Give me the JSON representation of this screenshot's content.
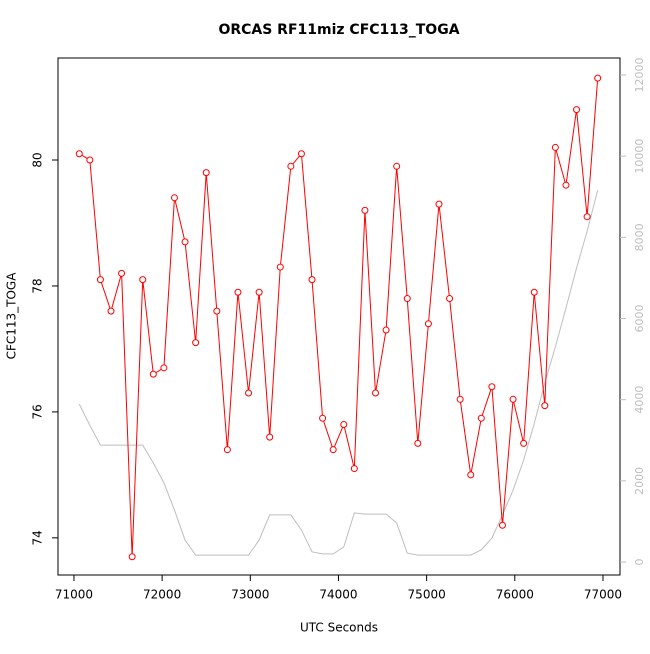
{
  "chart_data": {
    "type": "line",
    "title": "ORCAS RF11miz CFC113_TOGA",
    "xlabel": "UTC Seconds",
    "ylabel": "CFC113_TOGA",
    "x": [
      71060,
      71180,
      71300,
      71420,
      71540,
      71660,
      71780,
      71900,
      72020,
      72140,
      72260,
      72380,
      72500,
      72620,
      72740,
      72860,
      72980,
      73100,
      73220,
      73340,
      73460,
      73580,
      73700,
      73820,
      73940,
      74060,
      74180,
      74300,
      74420,
      74540,
      74660,
      74780,
      74900,
      75020,
      75140,
      75260,
      75380,
      75500,
      75620,
      75740,
      75860,
      75980,
      76100,
      76220,
      76340,
      76460,
      76580,
      76700,
      76820,
      76940
    ],
    "series": [
      {
        "color": "#ff0000",
        "markers": true,
        "values": [
          80.1,
          80.0,
          78.1,
          77.6,
          78.2,
          73.7,
          78.1,
          76.6,
          76.7,
          79.4,
          78.7,
          77.1,
          79.8,
          77.6,
          75.4,
          77.9,
          76.3,
          77.9,
          75.6,
          78.3,
          79.9,
          80.1,
          78.1,
          75.9,
          75.4,
          75.8,
          75.1,
          79.2,
          76.3,
          77.3,
          79.9,
          77.8,
          75.5,
          77.4,
          79.3,
          77.8,
          76.2,
          75.0,
          75.9,
          76.4,
          74.2,
          76.2,
          75.5,
          77.9,
          76.1,
          80.2,
          79.6,
          80.8,
          79.1,
          81.3
        ]
      },
      {
        "color": "#bebebe",
        "markers": false,
        "axis": "y2",
        "values": [
          3890,
          3370,
          2880,
          2880,
          2880,
          2880,
          2880,
          2440,
          1950,
          1280,
          540,
          170,
          170,
          170,
          170,
          170,
          170,
          540,
          1160,
          1160,
          1160,
          790,
          250,
          200,
          200,
          370,
          1210,
          1180,
          1180,
          1180,
          960,
          220,
          170,
          170,
          170,
          170,
          170,
          170,
          300,
          590,
          1160,
          1770,
          2510,
          3410,
          4410,
          5300,
          6260,
          7240,
          8150,
          9160
        ]
      }
    ],
    "xlim": [
      70819,
      77193
    ],
    "xticks": [
      71000,
      72000,
      73000,
      74000,
      75000,
      76000,
      77000
    ],
    "ylim": [
      73.41,
      81.62
    ],
    "yticks": [
      74,
      76,
      78,
      80
    ],
    "y2lim": [
      -320,
      12419
    ],
    "y2ticks": [
      0,
      2000,
      4000,
      6000,
      8000,
      10000,
      12000
    ],
    "y2color": "#bebebe"
  }
}
